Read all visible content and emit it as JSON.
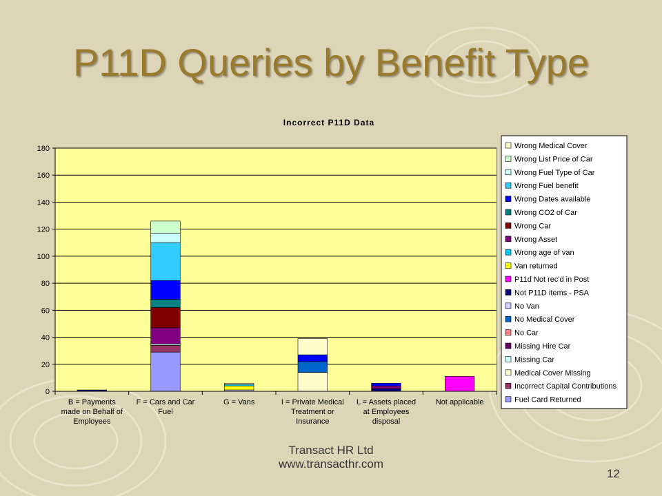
{
  "slide": {
    "title": "P11D Queries by Benefit Type",
    "footer_company": "Transact HR Ltd",
    "footer_url": "www.transacthr.com",
    "page_number": "12"
  },
  "chart_data": {
    "type": "bar",
    "stacked": true,
    "title": "Incorrect P11D Data",
    "xlabel": "",
    "ylabel": "",
    "ylim": [
      0,
      180
    ],
    "yticks": [
      0,
      20,
      40,
      60,
      80,
      100,
      120,
      140,
      160,
      180
    ],
    "grid": true,
    "legend_position": "right",
    "plot_background": "#ffff99",
    "categories": [
      [
        "B = Payments",
        "made on Behalf of",
        "Employees"
      ],
      [
        "F = Cars and Car",
        "Fuel"
      ],
      [
        "G = Vans"
      ],
      [
        "I = Private Medical",
        "Treatment or",
        "Insurance"
      ],
      [
        "L = Assets placed",
        "at Employees",
        "disposal"
      ],
      [
        "Not applicable"
      ]
    ],
    "series": [
      {
        "name": "Fuel Card Returned",
        "color": "#9999ff",
        "values": [
          0,
          29,
          0,
          0,
          0,
          0
        ]
      },
      {
        "name": "Incorrect Capital Contributions",
        "color": "#993366",
        "values": [
          0,
          5,
          0,
          0,
          0,
          0
        ]
      },
      {
        "name": "Medical Cover Missing",
        "color": "#ffffcc",
        "values": [
          0,
          0,
          0,
          14,
          0,
          0
        ]
      },
      {
        "name": "Missing Car",
        "color": "#ccffff",
        "values": [
          0,
          1,
          0,
          0,
          0,
          0
        ]
      },
      {
        "name": "Missing Hire Car",
        "color": "#660066",
        "values": [
          0,
          0,
          0,
          0,
          0,
          0
        ]
      },
      {
        "name": "No Car",
        "color": "#ff8080",
        "values": [
          0,
          0,
          0,
          0,
          0,
          0
        ]
      },
      {
        "name": "No Medical Cover",
        "color": "#0066cc",
        "values": [
          0,
          0,
          0,
          8,
          0,
          0
        ]
      },
      {
        "name": "No Van",
        "color": "#ccccff",
        "values": [
          0,
          0,
          1,
          0,
          0,
          0
        ]
      },
      {
        "name": "Not P11D items - PSA",
        "color": "#000080",
        "values": [
          1,
          0,
          0,
          0,
          2,
          0
        ]
      },
      {
        "name": "P11d Not rec'd in Post",
        "color": "#ff00ff",
        "values": [
          0,
          0,
          0,
          0,
          0,
          11
        ]
      },
      {
        "name": "Van returned",
        "color": "#ffff00",
        "values": [
          0,
          0,
          3,
          0,
          0,
          0
        ]
      },
      {
        "name": "Wrong age of van",
        "color": "#00ccff",
        "values": [
          0,
          0,
          1,
          0,
          0,
          0
        ]
      },
      {
        "name": "Wrong Asset",
        "color": "#800080",
        "values": [
          0,
          12,
          0,
          0,
          2,
          0
        ]
      },
      {
        "name": "Wrong Car",
        "color": "#800000",
        "values": [
          0,
          15,
          0,
          0,
          0,
          0
        ]
      },
      {
        "name": "Wrong CO2 of Car",
        "color": "#008080",
        "values": [
          0,
          6,
          0,
          0,
          0,
          0
        ]
      },
      {
        "name": "Wrong Dates available",
        "color": "#0000ff",
        "values": [
          0,
          14,
          0,
          5,
          2,
          0
        ]
      },
      {
        "name": "Wrong Fuel benefit",
        "color": "#33ccff",
        "values": [
          0,
          28,
          0,
          0,
          0,
          0
        ]
      },
      {
        "name": "Wrong Fuel Type of Car",
        "color": "#ccffff",
        "values": [
          0,
          7,
          0,
          0,
          0,
          0
        ]
      },
      {
        "name": "Wrong List Price of Car",
        "color": "#ccffcc",
        "values": [
          0,
          9,
          0,
          0,
          0,
          0
        ]
      },
      {
        "name": "Wrong Medical Cover",
        "color": "#ffffcc",
        "values": [
          0,
          0,
          1,
          12,
          0,
          0
        ]
      }
    ],
    "segments_drawn": [
      {
        "cat": 0,
        "order": [
          8
        ]
      },
      {
        "cat": 1,
        "order": [
          0,
          1,
          2,
          3,
          17,
          4,
          5,
          12,
          13,
          14,
          15,
          16,
          18
        ]
      }
    ]
  }
}
